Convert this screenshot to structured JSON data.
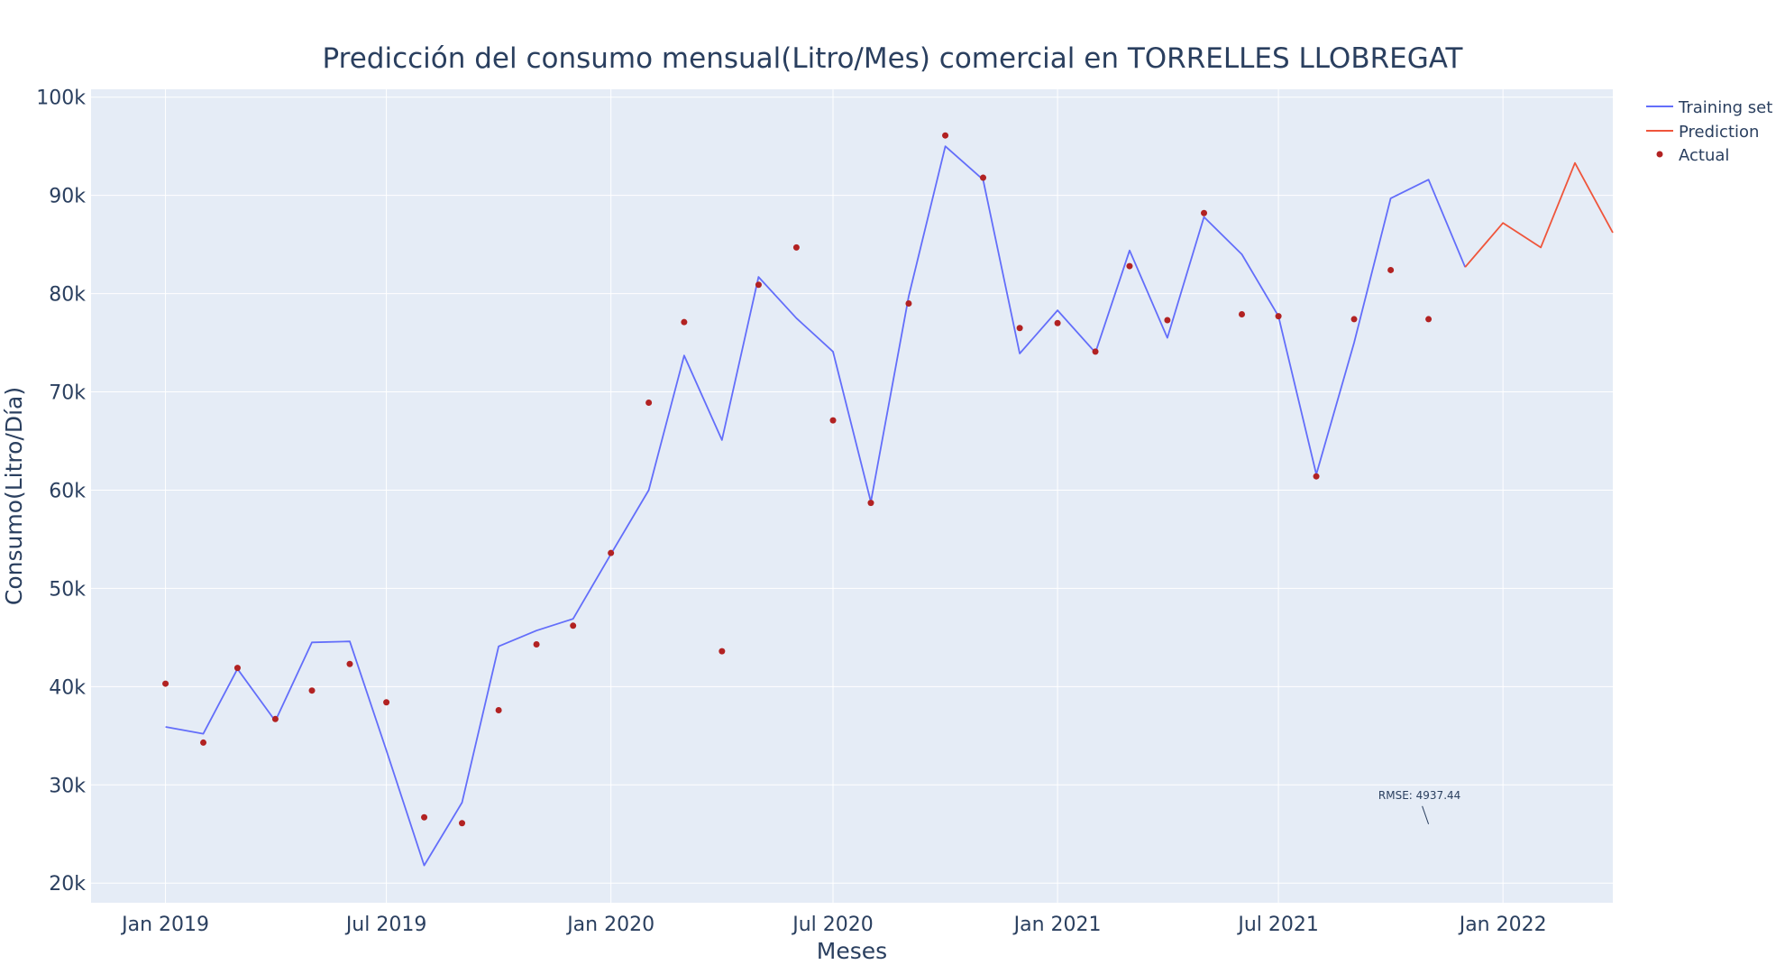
{
  "chart_data": {
    "type": "line",
    "title": "Predicción del consumo mensual(Litro/Mes) comercial en TORRELLES LLOBREGAT",
    "xlabel": "Meses",
    "ylabel": "Consumo(Litro/Día)",
    "x_tick_labels": [
      "Jan 2019",
      "Jul 2019",
      "Jan 2020",
      "Jul 2020",
      "Jan 2021",
      "Jul 2021",
      "Jan 2022"
    ],
    "y_tick_labels": [
      "20k",
      "30k",
      "40k",
      "50k",
      "60k",
      "70k",
      "80k",
      "90k",
      "100k"
    ],
    "xlim": [
      "2018-11-01",
      "2022-04-01"
    ],
    "ylim": [
      18000,
      100800
    ],
    "grid": true,
    "legend_position": "top-right",
    "colors": {
      "plot_bg": "#e5ecf6",
      "grid": "#ffffff",
      "text": "#2a3f5f",
      "training": "#636efa",
      "prediction": "#ef553b",
      "actual": "#b22222"
    },
    "series": [
      {
        "name": "Training set",
        "mode": "lines",
        "color": "#636efa",
        "x": [
          "2019-01",
          "2019-02",
          "2019-03",
          "2019-04",
          "2019-05",
          "2019-06",
          "2019-07",
          "2019-08",
          "2019-09",
          "2019-10",
          "2019-11",
          "2019-12",
          "2020-01",
          "2020-02",
          "2020-03",
          "2020-04",
          "2020-05",
          "2020-06",
          "2020-07",
          "2020-08",
          "2020-09",
          "2020-10",
          "2020-11",
          "2020-12",
          "2021-01",
          "2021-02",
          "2021-03",
          "2021-04",
          "2021-05",
          "2021-06",
          "2021-07",
          "2021-08",
          "2021-09",
          "2021-10",
          "2021-11",
          "2021-12"
        ],
        "y": [
          35900,
          35200,
          41800,
          36500,
          44500,
          44600,
          33500,
          21800,
          28200,
          44100,
          45700,
          46900,
          53500,
          60000,
          73700,
          65100,
          81700,
          77500,
          74100,
          58800,
          79700,
          95000,
          91600,
          73900,
          78300,
          74000,
          84400,
          75500,
          87800,
          84000,
          77700,
          61600,
          75000,
          89700,
          91600,
          82700
        ]
      },
      {
        "name": "Prediction",
        "mode": "lines",
        "color": "#ef553b",
        "x": [
          "2021-12",
          "2022-01",
          "2022-02",
          "2022-03",
          "2022-04"
        ],
        "y": [
          82700,
          87200,
          84700,
          93300,
          86200
        ]
      },
      {
        "name": "Actual",
        "mode": "markers",
        "color": "#b22222",
        "x": [
          "2019-01",
          "2019-02",
          "2019-03",
          "2019-04",
          "2019-05",
          "2019-06",
          "2019-07",
          "2019-08",
          "2019-09",
          "2019-10",
          "2019-11",
          "2019-12",
          "2020-01",
          "2020-02",
          "2020-03",
          "2020-04",
          "2020-05",
          "2020-06",
          "2020-07",
          "2020-08",
          "2020-09",
          "2020-10",
          "2020-11",
          "2020-12",
          "2021-01",
          "2021-02",
          "2021-03",
          "2021-04",
          "2021-05",
          "2021-06",
          "2021-07",
          "2021-08",
          "2021-09",
          "2021-10",
          "2021-11"
        ],
        "y": [
          40300,
          34300,
          41900,
          36700,
          39600,
          42300,
          38400,
          26700,
          26100,
          37600,
          44300,
          46200,
          53600,
          68900,
          77100,
          43600,
          80900,
          84700,
          67100,
          58700,
          79000,
          96100,
          91800,
          76500,
          77000,
          74100,
          82800,
          77300,
          88200,
          77900,
          77700,
          61400,
          77400,
          82400,
          77400
        ]
      }
    ],
    "annotation": {
      "text": "RMSE: 4937.44",
      "x": "2021-11-01",
      "y": 26000
    }
  }
}
